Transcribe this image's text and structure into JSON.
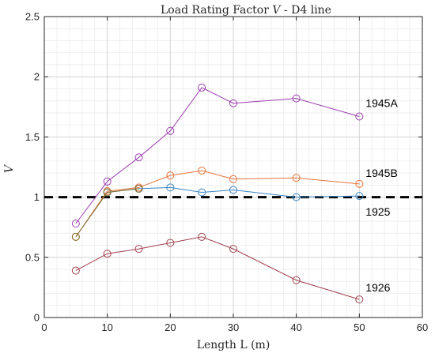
{
  "chart_data": {
    "type": "line",
    "title_prefix": "Load Rating Factor ",
    "title_var": "V",
    "title_suffix": " - D4 line",
    "xlabel": "Length L (m)",
    "ylabel": "V",
    "xlim": [
      0,
      60
    ],
    "ylim": [
      0,
      2.5
    ],
    "xticks": [
      "0",
      "10",
      "20",
      "30",
      "40",
      "50",
      "60"
    ],
    "yticks": [
      "0",
      "0.5",
      "1",
      "1.5",
      "2",
      "2.5"
    ],
    "grid": "major and minor",
    "reference_line": {
      "y": 1,
      "style": "dashed",
      "color": "#000000"
    },
    "series": [
      {
        "name": "1945A",
        "color": "#9d3fb0",
        "x": [
          5,
          10,
          15,
          20,
          25,
          30,
          40,
          50
        ],
        "values": [
          0.78,
          1.13,
          1.33,
          1.55,
          1.91,
          1.78,
          1.82,
          1.67
        ],
        "label_at": [
          51,
          1.78
        ]
      },
      {
        "name": "1945B",
        "color": "#e8743b",
        "x": [
          5,
          10,
          15,
          20,
          25,
          30,
          40,
          50
        ],
        "values": [
          0.67,
          1.05,
          1.08,
          1.18,
          1.22,
          1.15,
          1.16,
          1.11
        ],
        "label_at": [
          51,
          1.2
        ]
      },
      {
        "name": "1925",
        "color": "#3c85c4",
        "x": [
          10,
          15,
          20,
          25,
          30,
          40,
          50
        ],
        "values": [
          1.04,
          1.07,
          1.08,
          1.04,
          1.06,
          1.0,
          1.01
        ],
        "label_at": [
          51,
          0.88
        ]
      },
      {
        "name": "",
        "color": "#7a6e2a",
        "x": [
          5,
          10,
          15
        ],
        "values": [
          0.67,
          1.04,
          1.07
        ],
        "label_at": null
      },
      {
        "name": "1926",
        "color": "#a0414f",
        "x": [
          5,
          10,
          15,
          20,
          25,
          30,
          40,
          50
        ],
        "values": [
          0.39,
          0.53,
          0.57,
          0.62,
          0.67,
          0.57,
          0.31,
          0.15
        ],
        "label_at": [
          51,
          0.25
        ]
      }
    ]
  }
}
